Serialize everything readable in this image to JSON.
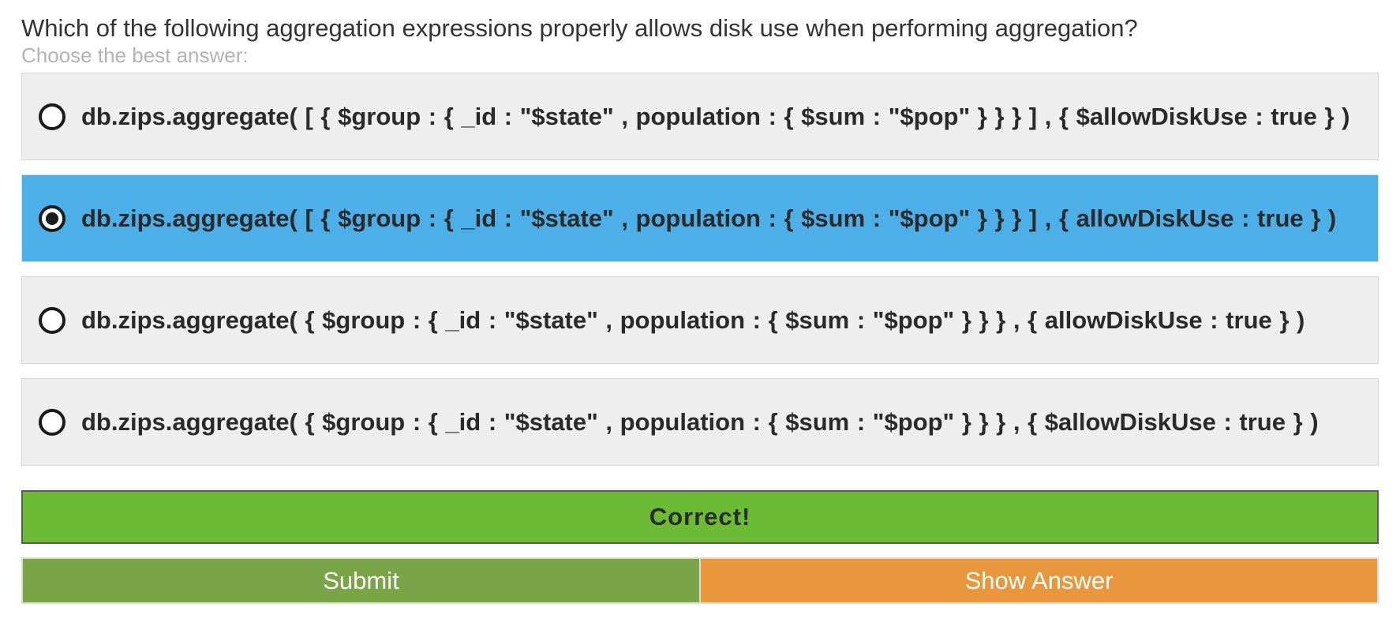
{
  "question": "Which of the following aggregation expressions properly allows disk use when performing aggregation?",
  "instructions": "Choose the best answer:",
  "options": [
    {
      "text": "db.zips.aggregate( [ { $group : { _id : \"$state\" , population : { $sum : \"$pop\" } } } ] , { $allowDiskUse : true } )",
      "selected": false
    },
    {
      "text": "db.zips.aggregate( [ { $group : { _id : \"$state\" , population : { $sum : \"$pop\" } } } ] , { allowDiskUse : true } )",
      "selected": true
    },
    {
      "text": "db.zips.aggregate( { $group : { _id : \"$state\" , population : { $sum : \"$pop\" } } } , { allowDiskUse : true } )",
      "selected": false
    },
    {
      "text": "db.zips.aggregate( { $group : { _id : \"$state\" , population : { $sum : \"$pop\" } } } , { $allowDiskUse : true } )",
      "selected": false
    }
  ],
  "feedback": {
    "label": "Correct!",
    "color": "#6cbb35"
  },
  "buttons": {
    "submit_label": "Submit",
    "show_answer_label": "Show Answer"
  },
  "colors": {
    "selected_option": "#4dafe8",
    "option_background": "#eeeeee",
    "submit": "#79a447",
    "show_answer": "#e8973c"
  }
}
